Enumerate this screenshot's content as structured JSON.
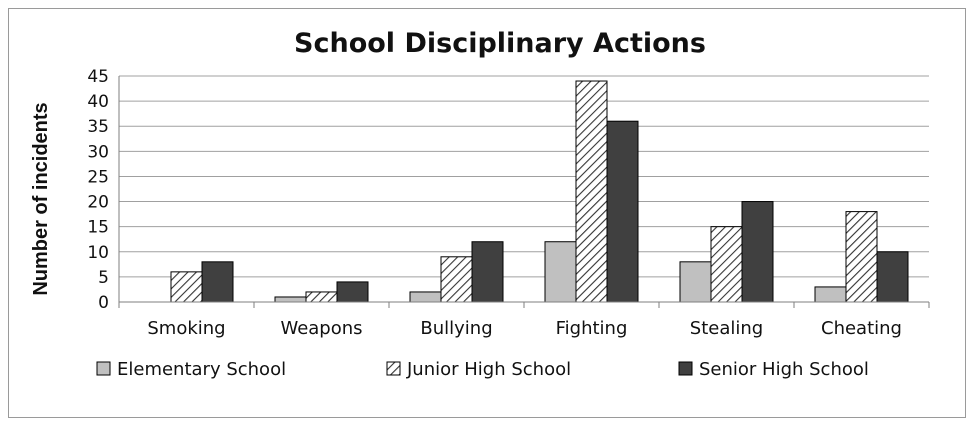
{
  "chart_data": {
    "type": "bar",
    "title": "School Disciplinary Actions",
    "xlabel": "",
    "ylabel": "Number of incidents",
    "ylim": [
      0,
      45
    ],
    "yticks": [
      0,
      5,
      10,
      15,
      20,
      25,
      30,
      35,
      40,
      45
    ],
    "grid": true,
    "legend_position": "bottom",
    "categories": [
      "Smoking",
      "Weapons",
      "Bullying",
      "Fighting",
      "Stealing",
      "Cheating"
    ],
    "series": [
      {
        "name": "Elementary School",
        "values": [
          0,
          1,
          2,
          12,
          8,
          3
        ],
        "color": "#c0c0c0",
        "pattern": "solid"
      },
      {
        "name": "Junior High School",
        "values": [
          6,
          2,
          9,
          44,
          15,
          18
        ],
        "color": "#ffffff",
        "pattern": "diagonal-hatch"
      },
      {
        "name": "Senior High School",
        "values": [
          8,
          4,
          12,
          36,
          20,
          10
        ],
        "color": "#404040",
        "pattern": "solid"
      }
    ]
  }
}
